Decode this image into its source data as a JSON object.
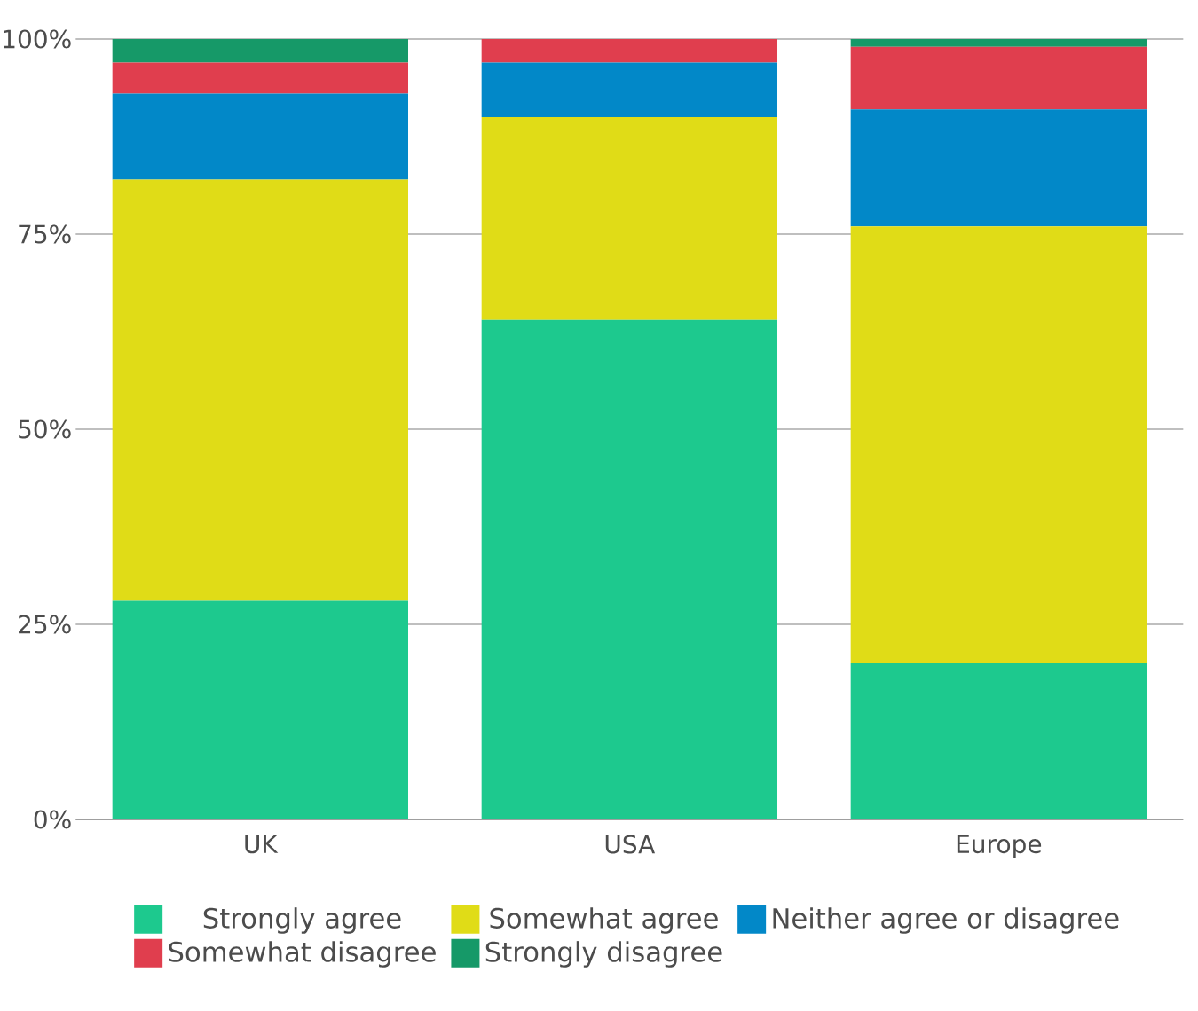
{
  "chart_data": {
    "type": "bar",
    "stacked": true,
    "categories": [
      "UK",
      "USA",
      "Europe"
    ],
    "series": [
      {
        "name": "Strongly agree",
        "color": "#1dc98e",
        "values": [
          28,
          64,
          20
        ]
      },
      {
        "name": "Somewhat agree",
        "color": "#e0dc17",
        "values": [
          54,
          26,
          56
        ]
      },
      {
        "name": "Neither agree or disagree",
        "color": "#0288c8",
        "values": [
          11,
          7,
          15
        ]
      },
      {
        "name": "Somewhat disagree",
        "color": "#e03e4e",
        "values": [
          4,
          3,
          8
        ]
      },
      {
        "name": "Strongly disagree",
        "color": "#169968",
        "values": [
          3,
          0,
          1
        ]
      }
    ],
    "ylim": [
      0,
      100
    ],
    "yticks": [
      {
        "value": 0,
        "label": "0%"
      },
      {
        "value": 25,
        "label": "25%"
      },
      {
        "value": 50,
        "label": "50%"
      },
      {
        "value": 75,
        "label": "75%"
      },
      {
        "value": 100,
        "label": "100%"
      }
    ],
    "grid": "y",
    "legend": "bottom"
  }
}
